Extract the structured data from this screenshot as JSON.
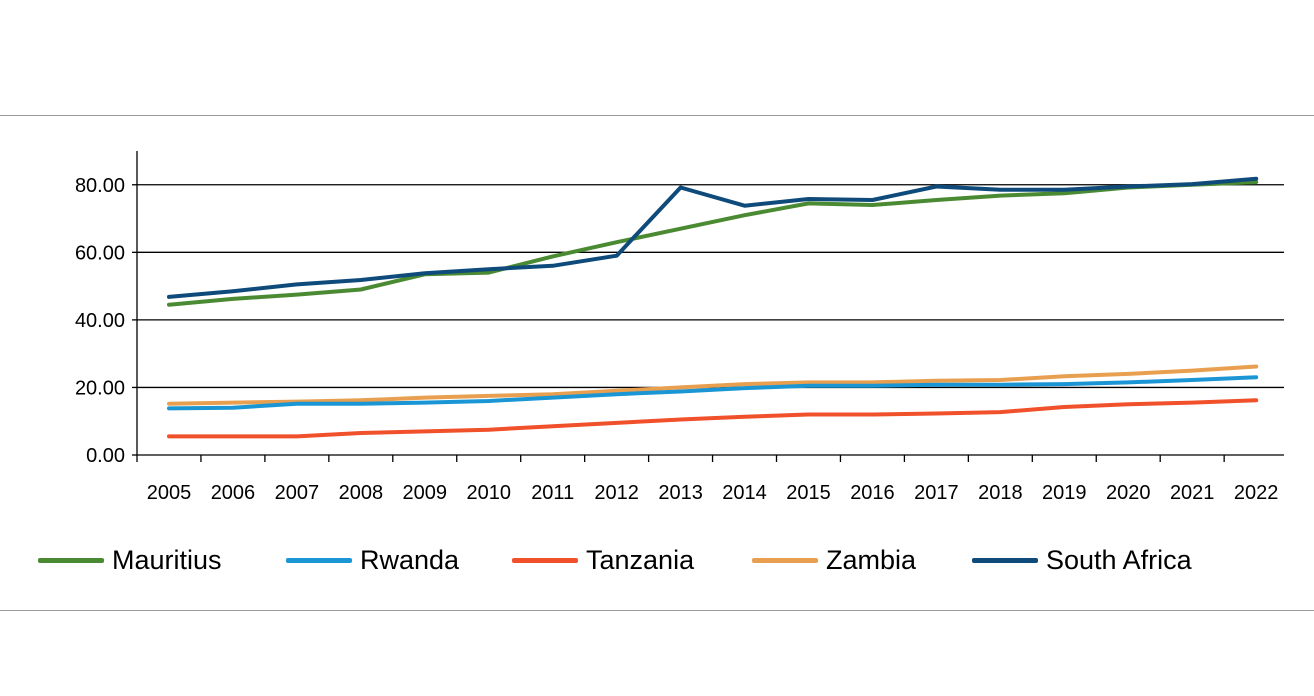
{
  "chart_data": {
    "type": "line",
    "title": "",
    "xlabel": "",
    "ylabel": "",
    "x": [
      "2005",
      "2006",
      "2007",
      "2008",
      "2009",
      "2010",
      "2011",
      "2012",
      "2013",
      "2014",
      "2015",
      "2016",
      "2017",
      "2018",
      "2019",
      "2020",
      "2021",
      "2022"
    ],
    "ylim": [
      0,
      90
    ],
    "yticks": [
      0,
      20,
      40,
      60,
      80
    ],
    "ytick_labels": [
      "0.00",
      "20.00",
      "40.00",
      "60.00",
      "80.00"
    ],
    "grid": "horizontal",
    "legend_position": "bottom",
    "series": [
      {
        "name": "Mauritius",
        "color": "#4a8a32",
        "values": [
          44.5,
          46.2,
          47.5,
          49.0,
          53.5,
          54.0,
          58.8,
          63.0,
          67.0,
          71.0,
          74.5,
          74.0,
          75.5,
          76.8,
          77.5,
          79.2,
          80.0,
          80.8
        ]
      },
      {
        "name": "Rwanda",
        "color": "#1b96d4",
        "values": [
          13.8,
          14.0,
          15.2,
          15.2,
          15.5,
          16.0,
          17.0,
          18.0,
          18.8,
          19.8,
          20.5,
          20.5,
          20.8,
          20.8,
          21.0,
          21.5,
          22.2,
          23.0
        ]
      },
      {
        "name": "Tanzania",
        "color": "#f0502a",
        "values": [
          5.5,
          5.5,
          5.5,
          6.5,
          7.0,
          7.5,
          8.5,
          9.5,
          10.5,
          11.3,
          12.0,
          12.0,
          12.3,
          12.7,
          14.2,
          15.0,
          15.5,
          16.2
        ]
      },
      {
        "name": "Zambia",
        "color": "#e8a050",
        "values": [
          15.2,
          15.5,
          15.8,
          16.2,
          17.0,
          17.5,
          18.0,
          19.0,
          20.0,
          21.0,
          21.5,
          21.5,
          22.0,
          22.2,
          23.3,
          24.0,
          25.0,
          26.2
        ]
      },
      {
        "name": "South Africa",
        "color": "#0e4a7a",
        "values": [
          46.8,
          48.5,
          50.5,
          51.8,
          53.8,
          55.0,
          56.0,
          59.0,
          79.2,
          73.8,
          75.8,
          75.5,
          79.5,
          78.5,
          78.5,
          79.5,
          80.2,
          81.8
        ]
      }
    ]
  }
}
